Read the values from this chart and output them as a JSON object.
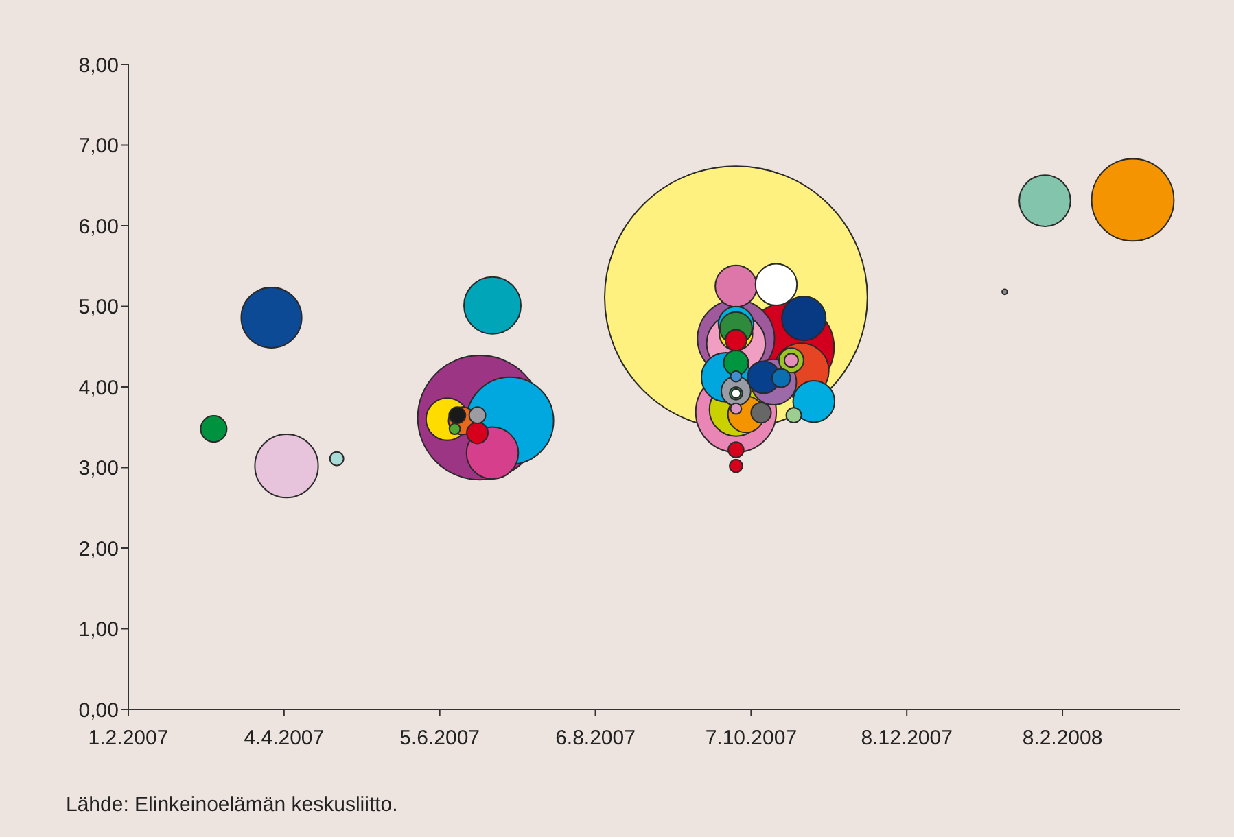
{
  "chart_data": {
    "type": "bubble",
    "x": [
      "2007-10-01",
      "2007-06-21",
      "2007-10-22",
      "2007-07-03",
      "2008-03-07",
      "2007-10-01",
      "2007-10-01",
      "2007-04-05",
      "2007-03-30",
      "2007-06-26",
      "2007-10-01",
      "2007-10-27",
      "2007-10-01",
      "2007-06-26",
      "2008-02-01",
      "2007-09-27",
      "2007-10-16",
      "2007-10-28",
      "2007-06-08",
      "2007-10-01",
      "2007-10-17",
      "2007-11-01",
      "2007-10-05",
      "2007-10-01",
      "2007-10-01",
      "2007-10-01",
      "2007-10-12",
      "2007-10-01",
      "2007-06-14",
      "2007-03-07",
      "2007-10-23",
      "2007-10-01",
      "2007-06-20",
      "2007-10-01",
      "2007-10-11",
      "2007-10-19",
      "2007-06-12",
      "2007-06-20",
      "2007-10-01",
      "2007-10-24",
      "2007-04-25",
      "2007-10-23",
      "2007-10-01",
      "2007-10-01",
      "2007-10-01",
      "2007-06-11",
      "2007-10-01",
      "2007-10-01",
      "2008-01-16"
    ],
    "values": [
      5.11,
      3.62,
      4.49,
      3.58,
      6.32,
      4.6,
      3.69,
      3.02,
      4.86,
      5.01,
      4.54,
      4.2,
      3.72,
      3.18,
      6.31,
      4.12,
      4.06,
      4.85,
      3.6,
      5.25,
      5.27,
      3.82,
      3.66,
      3.95,
      4.78,
      4.66,
      4.12,
      4.73,
      3.58,
      3.48,
      4.33,
      4.3,
      3.43,
      4.58,
      3.68,
      4.11,
      3.65,
      3.65,
      3.22,
      3.65,
      3.11,
      4.33,
      3.92,
      3.02,
      3.73,
      3.48,
      4.13,
      3.92,
      5.18
    ],
    "sizes": [
      1,
      0.224,
      0.119,
      0.11,
      0.098,
      0.086,
      0.094,
      0.058,
      0.053,
      0.047,
      0.05,
      0.044,
      0.041,
      0.039,
      0.038,
      0.035,
      0.03,
      0.028,
      0.026,
      0.025,
      0.025,
      0.025,
      0.019,
      0.0125,
      0.018,
      0.016,
      0.015,
      0.015,
      0.011,
      0.0099,
      0.0088,
      0.0088,
      0.0065,
      0.0065,
      0.0058,
      0.0049,
      0.0039,
      0.0039,
      0.0035,
      0.0033,
      0.0027,
      0.0027,
      0.0024,
      0.0024,
      0.0017,
      0.0017,
      0.0017,
      0.0012,
      0.0004
    ],
    "colors": [
      "#fff17f",
      "#9b3584",
      "#d2001e",
      "#00a8df",
      "#f39400",
      "#9e5a9c",
      "#ea86b5",
      "#e7c3dc",
      "#0d4a96",
      "#00a5b8",
      "#f09fc3",
      "#e64524",
      "#c9d100",
      "#d63f8c",
      "#83c5ac",
      "#00a7de",
      "#9d6aa9",
      "#073a82",
      "#ffdc00",
      "#de77a9",
      "#ffffff",
      "#00ade0",
      "#f39400",
      "#9a9ca5",
      "#00b0dc",
      "#ffe500",
      "#07408c",
      "#2e8b3c",
      "#ea6a1c",
      "#00923f",
      "#9cc32a",
      "#009640",
      "#d6001c",
      "#d7001c",
      "#676767",
      "#0a6fb3",
      "#1a1a1a",
      "#9a9ca1",
      "#d7001c",
      "#9ccf8f",
      "#a8dcd8",
      "#e58fba",
      "#35a04a",
      "#d7001c",
      "#d994c3",
      "#4fa635",
      "#3d8fd0",
      "#ffffff",
      "#8a8a8a"
    ],
    "xlim": [
      "2007-02-01",
      "2008-03-26"
    ],
    "xticks": [
      {
        "value": "2007-02-01",
        "label": "1.2.2007"
      },
      {
        "value": "2007-04-04",
        "label": "4.4.2007"
      },
      {
        "value": "2007-06-05",
        "label": "5.6.2007"
      },
      {
        "value": "2007-08-06",
        "label": "6.8.2007"
      },
      {
        "value": "2007-10-07",
        "label": "7.10.2007"
      },
      {
        "value": "2007-12-08",
        "label": "8.12.2007"
      },
      {
        "value": "2008-02-08",
        "label": "8.2.2008"
      }
    ],
    "ylim": [
      0,
      8
    ],
    "yticks": [
      {
        "value": 0,
        "label": "0,00"
      },
      {
        "value": 1,
        "label": "1,00"
      },
      {
        "value": 2,
        "label": "2,00"
      },
      {
        "value": 3,
        "label": "3,00"
      },
      {
        "value": 4,
        "label": "4,00"
      },
      {
        "value": 5,
        "label": "5,00"
      },
      {
        "value": 6,
        "label": "6,00"
      },
      {
        "value": 7,
        "label": "7,00"
      },
      {
        "value": 8,
        "label": "8,00"
      }
    ],
    "annotations": [
      "Lähde: Elinkeinoelämän keskusliitto."
    ]
  }
}
